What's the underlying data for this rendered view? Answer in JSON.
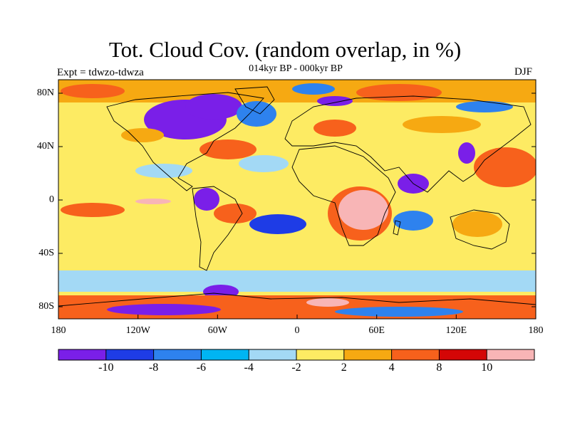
{
  "title": "Tot. Cloud Cov. (random overlap, in %)",
  "subtitle": "014kyr BP - 000kyr BP",
  "left_label": "Expt = tdwzo-tdwza",
  "right_label": "DJF",
  "lat_ticks": [
    "80N",
    "40N",
    "0",
    "40S",
    "80S"
  ],
  "lon_ticks": [
    "180",
    "120W",
    "60W",
    "0",
    "60E",
    "120E",
    "180"
  ],
  "colorbar": {
    "labels": [
      "-10",
      "-8",
      "-6",
      "-4",
      "-2",
      "2",
      "4",
      "8",
      "10"
    ],
    "colors": [
      "#7a1fe8",
      "#1e3ce6",
      "#2e82ee",
      "#00b5f2",
      "#a3d9f5",
      "#fdeb63",
      "#f6a912",
      "#f7611c",
      "#d40606",
      "#f8b5b6"
    ]
  },
  "palette": {
    "purple": "#7a1fe8",
    "blue": "#1e3ce6",
    "midblue": "#2e82ee",
    "cyan": "#00b5f2",
    "lightblue": "#a3d9f5",
    "yellow": "#fdeb63",
    "orange": "#f6a912",
    "redorange": "#f7611c",
    "red": "#d40606",
    "pink": "#f8b5b6"
  }
}
